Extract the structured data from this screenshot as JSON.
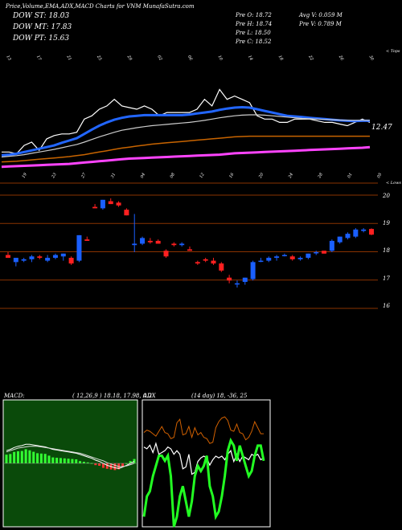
{
  "header": {
    "title": "Price,Volume,EMA,ADX,MACD Charts for VNM MunafaSutra.com",
    "dow_st": "DOW ST: 18.03",
    "dow_mt": "DOW MT: 17.83",
    "dow_pt": "DOW PT: 15.63",
    "prev_open": "Pre   O: 18.72",
    "prev_high": "Pre   H: 18.74",
    "prev_low": "Pre   L: 18.50",
    "prev_close": "Pre   C: 18.52",
    "avg_vol": "Avg V: 0.059 M",
    "prev_vol": "Pre   V: 0.789 M"
  },
  "colors": {
    "dow_st": "#ffffff",
    "dow_mt": "#ffffff",
    "dow_pt": "#ff66ff",
    "up_candle": "#1a5fff",
    "down_candle": "#ff2020",
    "level_line": "#8a3300",
    "macd_bg": "#0a4a0a"
  },
  "ema_panel": {
    "top_label": "< Tops",
    "bottom_label": "< Lows",
    "price_label": "12.47",
    "top_dates": [
      "13",
      "14",
      "15",
      "16",
      "17",
      "18",
      "19",
      "20",
      "21",
      "22",
      "23",
      "24",
      "25",
      "26",
      "27",
      "28",
      "29",
      "30",
      "31",
      "01",
      "02",
      "03",
      "04",
      "05",
      "06",
      "07",
      "08",
      "09",
      "10",
      "11",
      "12",
      "13",
      "14",
      "15",
      "16",
      "17",
      "18",
      "19",
      "20",
      "21",
      "22",
      "23",
      "24",
      "25",
      "26",
      "27",
      "28",
      "29",
      "30",
      "31"
    ],
    "bottom_dates": [
      "19",
      "20",
      "21",
      "22",
      "23",
      "24",
      "25",
      "26",
      "27",
      "28",
      "29",
      "30",
      "31",
      "01",
      "02",
      "03",
      "04",
      "05",
      "06",
      "07",
      "08",
      "09",
      "10",
      "11",
      "12",
      "13",
      "14",
      "15",
      "16",
      "17",
      "18",
      "19",
      "20",
      "21",
      "22",
      "23",
      "24",
      "25",
      "26",
      "27",
      "28",
      "29",
      "30",
      "31",
      "01",
      "02",
      "03",
      "04",
      "05",
      "06"
    ]
  },
  "price_axis": [
    "20",
    "19",
    "18",
    "17",
    "16"
  ],
  "macd": {
    "label": "MACD:",
    "values": "( 12,26,9 ) 18.18,  17.98,  0.2"
  },
  "adx": {
    "label": "ADX",
    "values": "(14  day) 18,  -36,  25"
  },
  "chart_data": [
    {
      "type": "candlestick",
      "ylim": [
        15.6,
        20.3
      ],
      "y_ticks": [
        20,
        19,
        18,
        17,
        16
      ],
      "candles": [
        {
          "o": 17.8,
          "h": 17.9,
          "l": 17.7,
          "c": 17.7
        },
        {
          "o": 17.55,
          "h": 17.7,
          "l": 17.4,
          "c": 17.7
        },
        {
          "o": 17.6,
          "h": 17.7,
          "l": 17.55,
          "c": 17.65
        },
        {
          "o": 17.65,
          "h": 17.8,
          "l": 17.55,
          "c": 17.75
        },
        {
          "o": 17.75,
          "h": 17.8,
          "l": 17.65,
          "c": 17.7
        },
        {
          "o": 17.6,
          "h": 17.8,
          "l": 17.55,
          "c": 17.7
        },
        {
          "o": 17.7,
          "h": 17.85,
          "l": 17.65,
          "c": 17.8
        },
        {
          "o": 17.75,
          "h": 17.85,
          "l": 17.6,
          "c": 17.85
        },
        {
          "o": 17.7,
          "h": 17.75,
          "l": 17.45,
          "c": 17.5
        },
        {
          "o": 17.6,
          "h": 18.5,
          "l": 17.55,
          "c": 18.5
        },
        {
          "o": 18.35,
          "h": 18.45,
          "l": 18.3,
          "c": 18.3
        },
        {
          "o": 19.5,
          "h": 19.6,
          "l": 19.45,
          "c": 19.45
        },
        {
          "o": 19.45,
          "h": 19.75,
          "l": 19.4,
          "c": 19.75
        },
        {
          "o": 19.7,
          "h": 19.8,
          "l": 19.6,
          "c": 19.6
        },
        {
          "o": 19.65,
          "h": 19.7,
          "l": 19.5,
          "c": 19.55
        },
        {
          "o": 19.4,
          "h": 19.45,
          "l": 19.2,
          "c": 19.2
        },
        {
          "o": 18.15,
          "h": 19.25,
          "l": 17.9,
          "c": 18.2
        },
        {
          "o": 18.2,
          "h": 18.45,
          "l": 18.15,
          "c": 18.4
        },
        {
          "o": 18.3,
          "h": 18.4,
          "l": 18.2,
          "c": 18.25
        },
        {
          "o": 18.3,
          "h": 18.35,
          "l": 18.2,
          "c": 18.2
        },
        {
          "o": 17.95,
          "h": 18.0,
          "l": 17.7,
          "c": 17.75
        },
        {
          "o": 18.2,
          "h": 18.25,
          "l": 18.1,
          "c": 18.15
        },
        {
          "o": 18.15,
          "h": 18.25,
          "l": 18.1,
          "c": 18.2
        },
        {
          "o": 18.0,
          "h": 18.1,
          "l": 17.95,
          "c": 17.95
        },
        {
          "o": 17.55,
          "h": 17.6,
          "l": 17.45,
          "c": 17.5
        },
        {
          "o": 17.65,
          "h": 17.7,
          "l": 17.55,
          "c": 17.6
        },
        {
          "o": 17.6,
          "h": 17.7,
          "l": 17.45,
          "c": 17.5
        },
        {
          "o": 17.5,
          "h": 17.55,
          "l": 17.2,
          "c": 17.25
        },
        {
          "o": 17.0,
          "h": 17.1,
          "l": 16.8,
          "c": 16.9
        },
        {
          "o": 16.8,
          "h": 16.9,
          "l": 16.65,
          "c": 16.8
        },
        {
          "o": 16.85,
          "h": 17.0,
          "l": 16.75,
          "c": 17.0
        },
        {
          "o": 16.95,
          "h": 17.6,
          "l": 16.9,
          "c": 17.55
        },
        {
          "o": 17.6,
          "h": 17.7,
          "l": 17.55,
          "c": 17.6
        },
        {
          "o": 17.6,
          "h": 17.75,
          "l": 17.55,
          "c": 17.7
        },
        {
          "o": 17.7,
          "h": 17.8,
          "l": 17.6,
          "c": 17.75
        },
        {
          "o": 17.8,
          "h": 17.85,
          "l": 17.75,
          "c": 17.8
        },
        {
          "o": 17.75,
          "h": 17.8,
          "l": 17.6,
          "c": 17.65
        },
        {
          "o": 17.65,
          "h": 17.75,
          "l": 17.6,
          "c": 17.7
        },
        {
          "o": 17.7,
          "h": 17.85,
          "l": 17.65,
          "c": 17.85
        },
        {
          "o": 17.9,
          "h": 17.95,
          "l": 17.8,
          "c": 17.9
        },
        {
          "o": 17.95,
          "h": 17.95,
          "l": 17.85,
          "c": 17.85
        },
        {
          "o": 17.95,
          "h": 18.35,
          "l": 17.9,
          "c": 18.3
        },
        {
          "o": 18.25,
          "h": 18.45,
          "l": 18.2,
          "c": 18.45
        },
        {
          "o": 18.4,
          "h": 18.6,
          "l": 18.35,
          "c": 18.55
        },
        {
          "o": 18.45,
          "h": 18.75,
          "l": 18.4,
          "c": 18.7
        },
        {
          "o": 18.65,
          "h": 18.75,
          "l": 18.6,
          "c": 18.7
        },
        {
          "o": 18.72,
          "h": 18.74,
          "l": 18.5,
          "c": 18.52
        }
      ]
    },
    {
      "type": "line",
      "series": [
        {
          "values": [
            12.0,
            12.0,
            11.95,
            12.2,
            12.3,
            12.05,
            12.4,
            12.5,
            12.55,
            12.55,
            12.6,
            13.0,
            13.1,
            13.3,
            13.4,
            13.6,
            13.4,
            13.35,
            13.3,
            13.4,
            13.3,
            13.1,
            13.2,
            13.2,
            13.2,
            13.2,
            13.3,
            13.6,
            13.4,
            13.9,
            13.6,
            13.7,
            13.6,
            13.5,
            13.1,
            13.0,
            13.0,
            12.9,
            12.9,
            13.0,
            13.0,
            13.0,
            12.95,
            12.9,
            12.9,
            12.85,
            12.8,
            12.9,
            13.0,
            12.9
          ]
        },
        {
          "values": [
            11.9,
            11.92,
            11.95,
            12.0,
            12.05,
            12.1,
            12.15,
            12.2,
            12.28,
            12.35,
            12.42,
            12.55,
            12.68,
            12.8,
            12.9,
            12.98,
            13.04,
            13.08,
            13.1,
            13.12,
            13.12,
            13.12,
            13.12,
            13.12,
            13.12,
            13.14,
            13.17,
            13.2,
            13.23,
            13.28,
            13.32,
            13.35,
            13.36,
            13.35,
            13.3,
            13.25,
            13.2,
            13.15,
            13.1,
            13.08,
            13.06,
            13.04,
            13.02,
            13.0,
            12.98,
            12.96,
            12.95,
            12.94,
            12.95,
            12.95
          ]
        },
        {
          "values": [
            11.85,
            11.87,
            11.89,
            11.92,
            11.96,
            12.0,
            12.04,
            12.08,
            12.13,
            12.18,
            12.23,
            12.3,
            12.38,
            12.46,
            12.53,
            12.6,
            12.66,
            12.7,
            12.74,
            12.77,
            12.8,
            12.82,
            12.84,
            12.86,
            12.88,
            12.9,
            12.93,
            12.96,
            13.0,
            13.04,
            13.07,
            13.1,
            13.12,
            13.13,
            13.13,
            13.12,
            13.1,
            13.08,
            13.06,
            13.04,
            13.02,
            13.01,
            13.0,
            12.99,
            12.98,
            12.97,
            12.96,
            12.96,
            12.96,
            12.96
          ]
        },
        {
          "values": [
            11.7,
            11.71,
            11.72,
            11.74,
            11.76,
            11.78,
            11.8,
            11.82,
            11.84,
            11.86,
            11.89,
            11.92,
            11.96,
            12.0,
            12.04,
            12.08,
            12.12,
            12.15,
            12.18,
            12.21,
            12.24,
            12.26,
            12.28,
            12.3,
            12.32,
            12.34,
            12.36,
            12.38,
            12.4,
            12.42,
            12.44,
            12.46,
            12.47,
            12.48,
            12.48,
            12.48,
            12.48,
            12.48,
            12.48,
            12.48,
            12.48,
            12.48,
            12.48,
            12.48,
            12.48,
            12.48,
            12.48,
            12.48,
            12.48,
            12.48
          ]
        },
        {
          "values": [
            11.55,
            11.56,
            11.57,
            11.58,
            11.59,
            11.6,
            11.61,
            11.62,
            11.63,
            11.64,
            11.66,
            11.68,
            11.7,
            11.72,
            11.74,
            11.76,
            11.78,
            11.8,
            11.81,
            11.82,
            11.83,
            11.84,
            11.85,
            11.86,
            11.87,
            11.88,
            11.89,
            11.9,
            11.91,
            11.92,
            11.94,
            11.96,
            11.97,
            11.98,
            11.99,
            12.0,
            12.01,
            12.02,
            12.03,
            12.04,
            12.05,
            12.06,
            12.07,
            12.08,
            12.09,
            12.1,
            12.11,
            12.12,
            12.13,
            12.15
          ]
        }
      ],
      "colors": [
        "#ffffff",
        "#2266ff",
        "#cccccc",
        "#c86400",
        "#ff44ff"
      ],
      "ylim": [
        11.3,
        14.3
      ]
    },
    {
      "type": "macd",
      "macd_values": [
        0.2,
        0.22,
        0.25,
        0.27,
        0.28,
        0.3,
        0.3,
        0.29,
        0.28,
        0.27,
        0.26,
        0.24,
        0.22,
        0.21,
        0.2,
        0.19,
        0.18,
        0.17,
        0.16,
        0.14,
        0.12,
        0.1,
        0.08,
        0.05,
        0.03,
        0.0,
        -0.03,
        -0.05,
        -0.07,
        -0.08,
        -0.06,
        -0.03,
        0.0,
        0.03
      ],
      "signal_values": [
        0.18,
        0.2,
        0.22,
        0.24,
        0.25,
        0.26,
        0.27,
        0.27,
        0.27,
        0.26,
        0.25,
        0.24,
        0.23,
        0.22,
        0.21,
        0.2,
        0.19,
        0.18,
        0.17,
        0.16,
        0.14,
        0.12,
        0.1,
        0.08,
        0.06,
        0.04,
        0.01,
        -0.01,
        -0.03,
        -0.05,
        -0.05,
        -0.04,
        -0.02,
        0.0
      ],
      "ylim": [
        -1.0,
        1.0
      ]
    },
    {
      "type": "adx",
      "adx_values": [
        18,
        20,
        19,
        17,
        15,
        19,
        23,
        18,
        17,
        13,
        14,
        26,
        29,
        16,
        17,
        23,
        14,
        22,
        16,
        18,
        14,
        13,
        9,
        10,
        22,
        27,
        30,
        31,
        28,
        20,
        19,
        25,
        18,
        17,
        12,
        14,
        19,
        27,
        22,
        17,
        17
      ],
      "di_plus": [
        62,
        66,
        67,
        70,
        72,
        74,
        74,
        73,
        74,
        70,
        60,
        62,
        66,
        68,
        65,
        62,
        65,
        70,
        72,
        71,
        72,
        74,
        68,
        66,
        62,
        63,
        66,
        70,
        75,
        77,
        76,
        73,
        76,
        74,
        72,
        70,
        71,
        74,
        76,
        76,
        73
      ],
      "di_minus": [
        84,
        83,
        85,
        81,
        86,
        80,
        81,
        82,
        84,
        83,
        80,
        82,
        80,
        72,
        73,
        80,
        69,
        70,
        76,
        78,
        79,
        78,
        74,
        77,
        79,
        78,
        79,
        77,
        80,
        82,
        76,
        80,
        76,
        79,
        78,
        77,
        80,
        79,
        80,
        77,
        78
      ],
      "ylim": [
        0,
        100
      ]
    }
  ]
}
